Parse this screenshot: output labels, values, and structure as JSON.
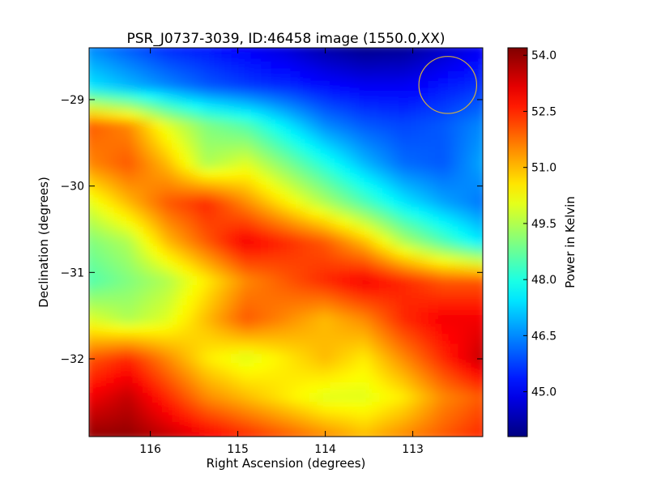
{
  "chart_data": {
    "type": "heatmap",
    "title": "PSR_J0737-3039, ID:46458 image (1550.0,XX)",
    "xlabel": "Right Ascension (degrees)",
    "ylabel": "Declination (degrees)",
    "xlim": [
      116.7,
      112.2
    ],
    "ylim": [
      -32.9,
      -28.4
    ],
    "x_ticks": [
      {
        "value": 116,
        "label": "116"
      },
      {
        "value": 115,
        "label": "115"
      },
      {
        "value": 114,
        "label": "114"
      },
      {
        "value": 113,
        "label": "113"
      }
    ],
    "y_ticks": [
      {
        "value": -29,
        "label": "−29"
      },
      {
        "value": -30,
        "label": "−30"
      },
      {
        "value": -31,
        "label": "−31"
      },
      {
        "value": -32,
        "label": "−32"
      }
    ],
    "colormap": "jet",
    "colorbar": {
      "label": "Power in Kelvin",
      "vmin": 43.8,
      "vmax": 54.2,
      "ticks": [
        {
          "value": 45.0,
          "label": "45.0"
        },
        {
          "value": 46.5,
          "label": "46.5"
        },
        {
          "value": 48.0,
          "label": "48.0"
        },
        {
          "value": 49.5,
          "label": "49.5"
        },
        {
          "value": 51.0,
          "label": "51.0"
        },
        {
          "value": 52.5,
          "label": "52.5"
        },
        {
          "value": 54.0,
          "label": "54.0"
        }
      ]
    },
    "grid": false,
    "ra_grid": [
      116.7,
      116.25,
      115.8,
      115.35,
      114.9,
      114.45,
      114.0,
      113.55,
      113.1,
      112.65,
      112.2
    ],
    "dec_grid": [
      -28.4,
      -28.85,
      -29.3,
      -29.75,
      -30.2,
      -30.65,
      -31.1,
      -31.55,
      -32.0,
      -32.45,
      -32.9
    ],
    "values": [
      [
        46.5,
        46.0,
        45.5,
        45.3,
        45.0,
        44.7,
        44.2,
        43.9,
        44.0,
        44.5,
        45.0
      ],
      [
        47.5,
        47.0,
        46.5,
        46.0,
        45.7,
        45.5,
        45.2,
        45.0,
        45.0,
        45.3,
        45.6
      ],
      [
        52.0,
        51.5,
        50.0,
        49.0,
        48.5,
        47.5,
        46.5,
        46.0,
        45.8,
        46.0,
        46.5
      ],
      [
        51.5,
        52.0,
        51.0,
        49.5,
        50.0,
        49.0,
        48.0,
        47.0,
        46.2,
        46.0,
        46.8
      ],
      [
        50.0,
        51.0,
        52.0,
        52.5,
        51.5,
        50.5,
        49.5,
        48.5,
        47.5,
        46.8,
        46.3
      ],
      [
        49.0,
        49.5,
        51.0,
        52.0,
        53.0,
        52.5,
        52.0,
        51.0,
        49.5,
        48.5,
        47.5
      ],
      [
        48.5,
        49.0,
        49.5,
        50.5,
        51.5,
        52.0,
        52.5,
        53.0,
        52.5,
        52.0,
        52.0
      ],
      [
        50.0,
        49.5,
        50.0,
        51.0,
        52.0,
        51.5,
        51.0,
        51.5,
        52.5,
        53.0,
        53.0
      ],
      [
        52.0,
        52.5,
        51.5,
        50.5,
        50.0,
        50.5,
        51.0,
        50.5,
        51.5,
        52.5,
        53.5
      ],
      [
        53.0,
        53.5,
        52.5,
        51.5,
        51.0,
        50.5,
        50.0,
        50.0,
        50.5,
        51.5,
        52.0
      ],
      [
        54.0,
        54.0,
        53.5,
        53.0,
        52.5,
        52.0,
        51.5,
        51.0,
        51.5,
        52.0,
        52.5
      ]
    ],
    "annotations": [
      {
        "shape": "circle",
        "center_ra": 112.6,
        "center_dec": -28.83,
        "radius_deg": 0.33,
        "color": "#d4b040"
      }
    ]
  }
}
